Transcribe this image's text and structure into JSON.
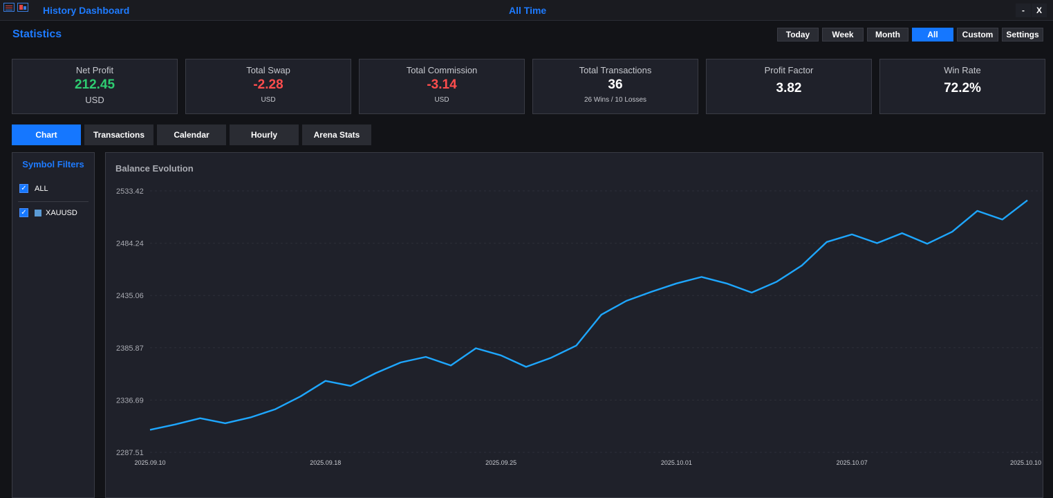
{
  "window": {
    "app_title": "History Dashboard",
    "period_title": "All Time",
    "minimize_label": "-",
    "close_label": "X"
  },
  "header": {
    "title": "Statistics",
    "period_buttons": [
      {
        "label": "Today",
        "active": false
      },
      {
        "label": "Week",
        "active": false
      },
      {
        "label": "Month",
        "active": false
      },
      {
        "label": "All",
        "active": true
      },
      {
        "label": "Custom",
        "active": false
      },
      {
        "label": "Settings",
        "active": false
      }
    ]
  },
  "cards": {
    "net_profit": {
      "label": "Net Profit",
      "value": "212.45",
      "sub": "USD",
      "color": "#2ecc71"
    },
    "total_swap": {
      "label": "Total Swap",
      "value": "-2.28",
      "sub": "USD",
      "color": "#ff4d4d"
    },
    "total_commission": {
      "label": "Total Commission",
      "value": "-3.14",
      "sub": "USD",
      "color": "#ff4d4d"
    },
    "total_transactions": {
      "label": "Total Transactions",
      "value": "36",
      "sub": "26 Wins / 10 Losses"
    },
    "profit_factor": {
      "label": "Profit Factor",
      "value": "3.82"
    },
    "win_rate": {
      "label": "Win Rate",
      "value": "72.2%"
    }
  },
  "tabs": [
    {
      "label": "Chart",
      "active": true
    },
    {
      "label": "Transactions",
      "active": false
    },
    {
      "label": "Calendar",
      "active": false
    },
    {
      "label": "Hourly",
      "active": false
    },
    {
      "label": "Arena Stats",
      "active": false
    }
  ],
  "filters": {
    "title": "Symbol Filters",
    "items": [
      {
        "label": "ALL",
        "checked": true,
        "check_glyph": "✓"
      },
      {
        "label": "XAUUSD",
        "checked": true,
        "check_glyph": "✓",
        "swatch_color": "#5b9bd5"
      }
    ]
  },
  "chart_data": {
    "type": "line",
    "title": "Balance Evolution",
    "xlabel": "",
    "ylabel": "",
    "line_color": "#1ea7ff",
    "grid": true,
    "ylim": [
      2287.51,
      2533.42
    ],
    "y_ticks": [
      "2533.42",
      "2484.24",
      "2435.06",
      "2385.87",
      "2336.69",
      "2287.51"
    ],
    "x_ticks": [
      "2025.09.10",
      "2025.09.18",
      "2025.09.25",
      "2025.10.01",
      "2025.10.07",
      "2025.10.10"
    ],
    "series": [
      {
        "values": [
          2308.7,
          2313.7,
          2319.6,
          2314.9,
          2320.3,
          2328.1,
          2340.1,
          2354.7,
          2350.0,
          2362.0,
          2372.1,
          2377.3,
          2369.2,
          2385.4,
          2378.7,
          2367.9,
          2376.5,
          2387.9,
          2416.9,
          2430.0,
          2438.5,
          2446.4,
          2452.5,
          2446.4,
          2437.8,
          2448.0,
          2463.2,
          2485.4,
          2492.5,
          2484.3,
          2493.7,
          2483.7,
          2495.0,
          2514.6,
          2506.5,
          2524.6
        ]
      }
    ]
  }
}
